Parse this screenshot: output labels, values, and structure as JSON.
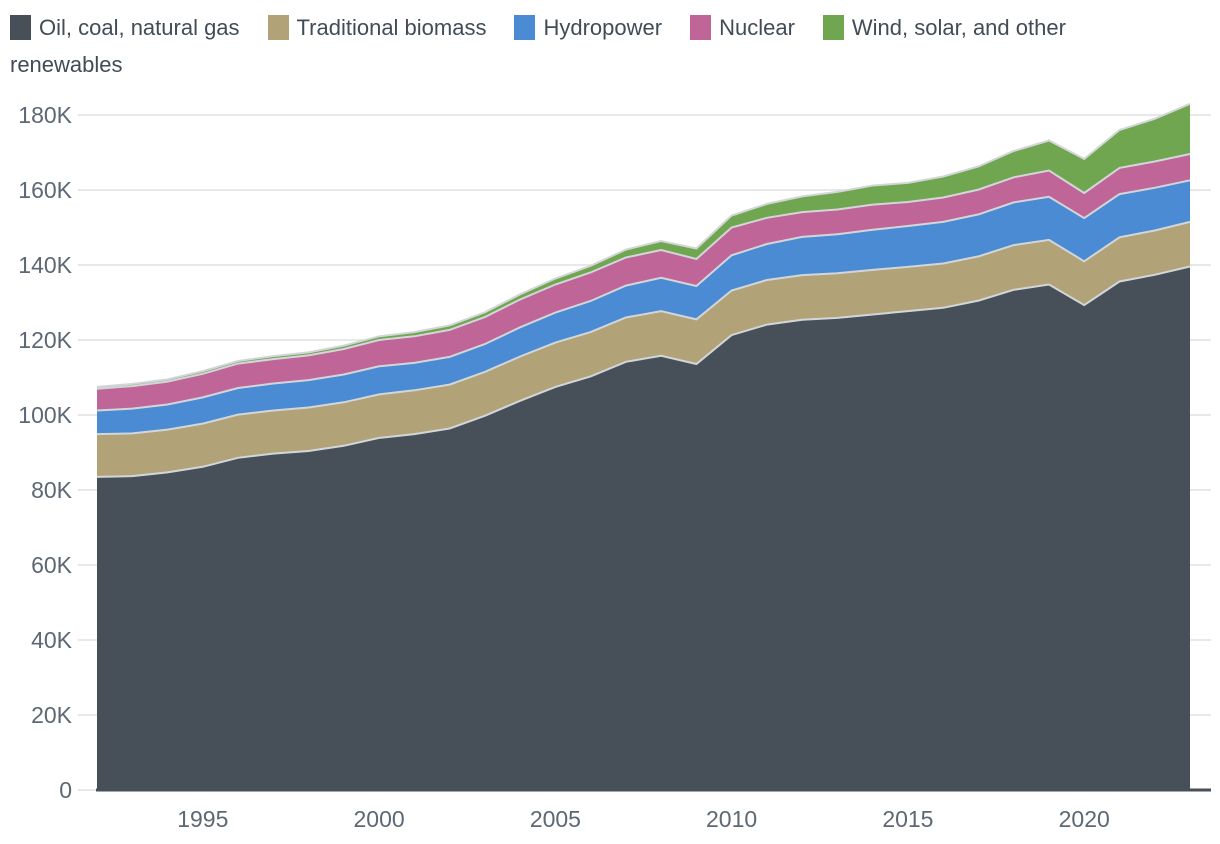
{
  "chart_data": {
    "type": "area",
    "stacked": true,
    "title": "",
    "xlabel": "",
    "ylabel": "",
    "x": [
      1992,
      1993,
      1994,
      1995,
      1996,
      1997,
      1998,
      1999,
      2000,
      2001,
      2002,
      2003,
      2004,
      2005,
      2006,
      2007,
      2008,
      2009,
      2010,
      2011,
      2012,
      2013,
      2014,
      2015,
      2016,
      2017,
      2018,
      2019,
      2020,
      2021,
      2022,
      2023
    ],
    "series": [
      {
        "name": "Oil, coal, natural gas",
        "color": "#475059",
        "values": [
          83500,
          83700,
          84700,
          86200,
          88600,
          89700,
          90400,
          91800,
          93900,
          94900,
          96400,
          99800,
          103800,
          107500,
          110300,
          114200,
          115800,
          113600,
          121300,
          124100,
          125400,
          125900,
          126800,
          127700,
          128600,
          130500,
          133400,
          134800,
          129300,
          135600,
          137400,
          139600
        ]
      },
      {
        "name": "Traditional biomass",
        "color": "#B2A278",
        "values": [
          11400,
          11400,
          11400,
          11500,
          11500,
          11500,
          11600,
          11600,
          11600,
          11700,
          11700,
          11700,
          11800,
          11800,
          11800,
          11800,
          11900,
          11900,
          11900,
          11900,
          11900,
          11900,
          11900,
          11800,
          11800,
          11800,
          11900,
          11900,
          11700,
          11800,
          11800,
          11900
        ]
      },
      {
        "name": "Hydropower",
        "color": "#4A8BD4",
        "values": [
          6300,
          6600,
          6700,
          7000,
          7100,
          7200,
          7300,
          7400,
          7500,
          7300,
          7400,
          7400,
          7800,
          8000,
          8300,
          8500,
          8900,
          8900,
          9400,
          9600,
          10200,
          10400,
          10700,
          10900,
          11100,
          11200,
          11400,
          11500,
          11500,
          11500,
          11400,
          11100
        ]
      },
      {
        "name": "Nuclear",
        "color": "#BF6598",
        "values": [
          5800,
          6000,
          6100,
          6300,
          6500,
          6500,
          6600,
          6800,
          7000,
          7100,
          7200,
          7200,
          7400,
          7500,
          7600,
          7500,
          7400,
          7200,
          7400,
          7000,
          6600,
          6600,
          6700,
          6400,
          6500,
          6600,
          6700,
          7000,
          6700,
          7000,
          7000,
          7000
        ]
      },
      {
        "name": "Wind, solar, and other renewables",
        "color": "#6FA64F",
        "values": [
          500,
          600,
          600,
          700,
          700,
          800,
          800,
          900,
          1000,
          1100,
          1200,
          1300,
          1400,
          1600,
          1800,
          2100,
          2400,
          2800,
          3200,
          3700,
          4200,
          4700,
          5100,
          5100,
          5600,
          6200,
          7000,
          8000,
          9100,
          10100,
          11400,
          13400
        ]
      }
    ],
    "xticks": [
      {
        "value": 1995,
        "label": "1995"
      },
      {
        "value": 2000,
        "label": "2000"
      },
      {
        "value": 2005,
        "label": "2005"
      },
      {
        "value": 2010,
        "label": "2010"
      },
      {
        "value": 2015,
        "label": "2015"
      },
      {
        "value": 2020,
        "label": "2020"
      }
    ],
    "yticks": [
      {
        "value": 0,
        "label": "0"
      },
      {
        "value": 20000,
        "label": "20K"
      },
      {
        "value": 40000,
        "label": "40K"
      },
      {
        "value": 60000,
        "label": "60K"
      },
      {
        "value": 80000,
        "label": "80K"
      },
      {
        "value": 100000,
        "label": "100K"
      },
      {
        "value": 120000,
        "label": "120K"
      },
      {
        "value": 140000,
        "label": "140K"
      },
      {
        "value": 160000,
        "label": "160K"
      },
      {
        "value": 180000,
        "label": "180K"
      }
    ],
    "xlim": [
      1992,
      2023
    ],
    "ylim": [
      0,
      180000
    ],
    "grid": true,
    "legend_position": "top-left"
  },
  "colors": {
    "background": "#FFFFFF",
    "grid": "#E0E0E0",
    "axis_line": "#475059",
    "tick_label": "#5D6874",
    "legend_label": "#414C57",
    "band_stroke": "#D3D6D9"
  }
}
